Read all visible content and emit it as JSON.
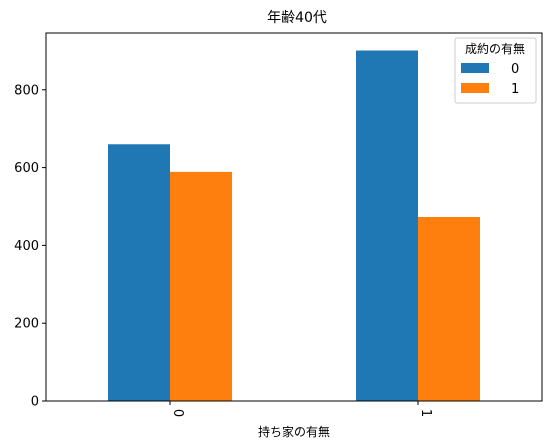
{
  "chart_data": {
    "type": "bar",
    "title": "年齢40代",
    "xlabel": "持ち家の有無",
    "ylabel": "",
    "categories": [
      "0",
      "1"
    ],
    "series": [
      {
        "name": "0",
        "values": [
          660,
          901
        ],
        "color": "#1f77b4"
      },
      {
        "name": "1",
        "values": [
          589,
          473
        ],
        "color": "#ff7f0e"
      }
    ],
    "ylim": [
      0,
      946
    ],
    "yticks": [
      0,
      200,
      400,
      600,
      800
    ],
    "legend": {
      "title": "成約の有無",
      "placement": "top-right"
    },
    "grid": false
  }
}
